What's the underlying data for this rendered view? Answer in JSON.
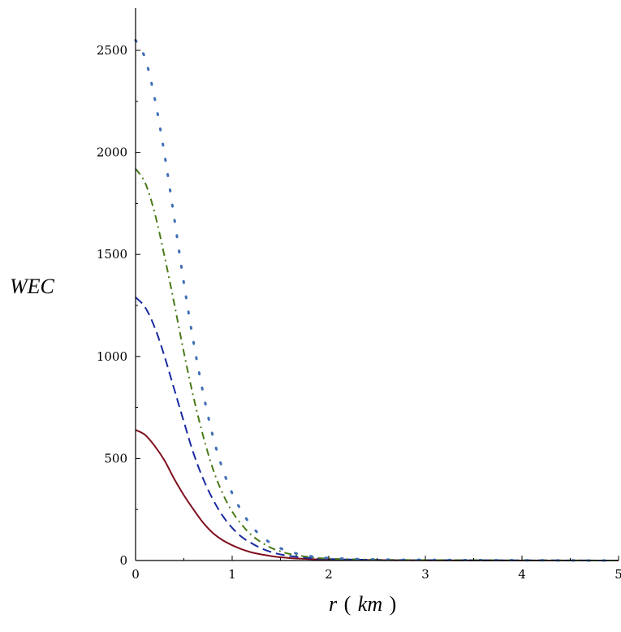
{
  "chart_data": {
    "type": "line",
    "title": "",
    "xlabel_parts": [
      "r",
      "(",
      "km",
      ")"
    ],
    "ylabel": "WEC",
    "xlim": [
      0,
      5
    ],
    "ylim": [
      0,
      2700
    ],
    "x_ticks": [
      0,
      1,
      2,
      3,
      4,
      5
    ],
    "x_tick_labels": [
      "0",
      "1",
      "2",
      "3",
      "4",
      "5"
    ],
    "y_ticks": [
      0,
      500,
      1000,
      1500,
      2000,
      2500
    ],
    "y_tick_labels": [
      "0",
      "500",
      "1000",
      "1500",
      "2000",
      "2500"
    ],
    "grid": false,
    "legend": "none",
    "series": [
      {
        "style": "solid",
        "color": "#7f0f1f",
        "x": [
          0,
          0.1,
          0.2,
          0.3,
          0.4,
          0.5,
          0.6,
          0.7,
          0.8,
          0.9,
          1.0,
          1.1,
          1.2,
          1.3,
          1.4,
          1.5,
          1.6,
          1.8,
          2.0,
          2.5,
          3.0,
          4.0,
          5.0
        ],
        "y": [
          640,
          615,
          560,
          490,
          400,
          320,
          250,
          185,
          135,
          100,
          75,
          55,
          40,
          30,
          22,
          16,
          12,
          7,
          4,
          2,
          1,
          0,
          0
        ]
      },
      {
        "style": "dash",
        "color": "#1a2aa0",
        "x": [
          0,
          0.1,
          0.2,
          0.3,
          0.4,
          0.5,
          0.6,
          0.7,
          0.8,
          0.9,
          1.0,
          1.1,
          1.2,
          1.3,
          1.4,
          1.5,
          1.6,
          1.8,
          2.0,
          2.5,
          3.0,
          4.0,
          5.0
        ],
        "y": [
          1290,
          1240,
          1140,
          1000,
          840,
          680,
          525,
          400,
          300,
          220,
          160,
          115,
          85,
          60,
          42,
          30,
          22,
          12,
          7,
          3,
          2,
          1,
          0
        ]
      },
      {
        "style": "dashdot",
        "color": "#4a7a18",
        "x": [
          0,
          0.1,
          0.2,
          0.3,
          0.4,
          0.5,
          0.6,
          0.7,
          0.8,
          0.9,
          1.0,
          1.1,
          1.2,
          1.3,
          1.4,
          1.5,
          1.6,
          1.8,
          2.0,
          2.5,
          3.0,
          4.0,
          5.0
        ],
        "y": [
          1920,
          1850,
          1700,
          1490,
          1260,
          1020,
          800,
          610,
          450,
          330,
          240,
          175,
          125,
          90,
          63,
          45,
          32,
          17,
          9,
          4,
          2,
          1,
          0
        ]
      },
      {
        "style": "dot",
        "color": "#3f6fb5",
        "x": [
          0,
          0.1,
          0.2,
          0.3,
          0.4,
          0.5,
          0.6,
          0.7,
          0.8,
          0.9,
          1.0,
          1.1,
          1.2,
          1.3,
          1.4,
          1.5,
          1.6,
          1.8,
          2.0,
          2.5,
          3.0,
          4.0,
          5.0
        ],
        "y": [
          2550,
          2460,
          2260,
          1990,
          1680,
          1360,
          1070,
          820,
          610,
          450,
          330,
          240,
          170,
          120,
          85,
          60,
          42,
          22,
          12,
          5,
          3,
          1,
          0
        ]
      }
    ]
  }
}
